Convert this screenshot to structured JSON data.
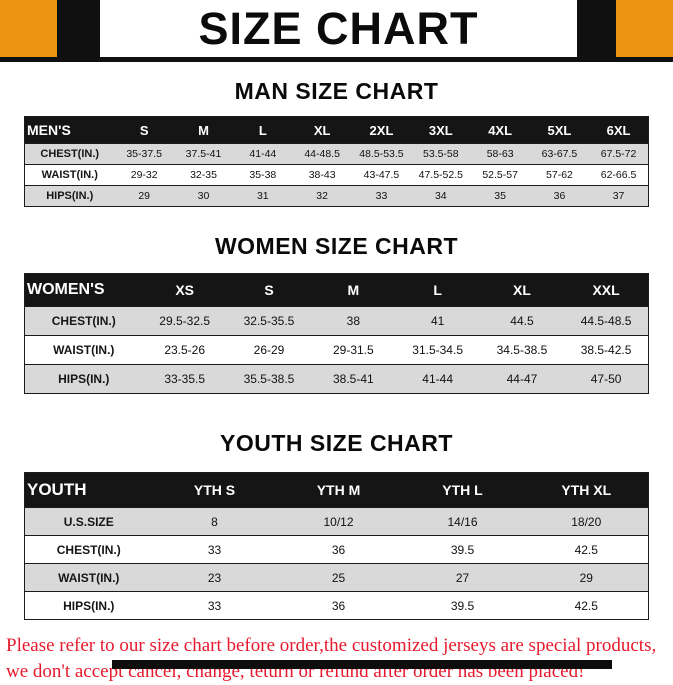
{
  "header": {
    "title": "SIZE CHART"
  },
  "colors": {
    "accent_orange": "#ED9312",
    "banner_black": "#101010",
    "table_header_black": "#151515",
    "row_shade_gray": "#d9d9d9",
    "footer_red": "#E8192C"
  },
  "sections": [
    {
      "id": "men",
      "heading": "MAN SIZE CHART",
      "table": {
        "header": [
          "MEN'S",
          "S",
          "M",
          "L",
          "XL",
          "2XL",
          "3XL",
          "4XL",
          "5XL",
          "6XL"
        ],
        "rows": [
          {
            "label": "CHEST(IN.)",
            "values": [
              "35-37.5",
              "37.5-41",
              "41-44",
              "44-48.5",
              "48.5-53.5",
              "53.5-58",
              "58-63",
              "63-67.5",
              "67.5-72"
            ]
          },
          {
            "label": "WAIST(IN.)",
            "values": [
              "29-32",
              "32-35",
              "35-38",
              "38-43",
              "43-47.5",
              "47.5-52.5",
              "52.5-57",
              "57-62",
              "62-66.5"
            ]
          },
          {
            "label": "HIPS(IN.)",
            "values": [
              "29",
              "30",
              "31",
              "32",
              "33",
              "34",
              "35",
              "36",
              "37"
            ]
          }
        ]
      }
    },
    {
      "id": "women",
      "heading": "WOMEN SIZE CHART",
      "table": {
        "header": [
          "WOMEN'S",
          "XS",
          "S",
          "M",
          "L",
          "XL",
          "XXL"
        ],
        "rows": [
          {
            "label": "CHEST(IN.)",
            "values": [
              "29.5-32.5",
              "32.5-35.5",
              "38",
              "41",
              "44.5",
              "44.5-48.5"
            ]
          },
          {
            "label": "WAIST(IN.)",
            "values": [
              "23.5-26",
              "26-29",
              "29-31.5",
              "31.5-34.5",
              "34.5-38.5",
              "38.5-42.5"
            ]
          },
          {
            "label": "HIPS(IN.)",
            "values": [
              "33-35.5",
              "35.5-38.5",
              "38.5-41",
              "41-44",
              "44-47",
              "47-50"
            ]
          }
        ]
      }
    },
    {
      "id": "youth",
      "heading": "YOUTH SIZE CHART",
      "table": {
        "header": [
          "YOUTH",
          "YTH S",
          "YTH M",
          "YTH L",
          "YTH XL"
        ],
        "rows": [
          {
            "label": "U.S.SIZE",
            "values": [
              "8",
              "10/12",
              "14/16",
              "18/20"
            ]
          },
          {
            "label": "CHEST(IN.)",
            "values": [
              "33",
              "36",
              "39.5",
              "42.5"
            ]
          },
          {
            "label": "WAIST(IN.)",
            "values": [
              "23",
              "25",
              "27",
              "29"
            ]
          },
          {
            "label": "HIPS(IN.)",
            "values": [
              "33",
              "36",
              "39.5",
              "42.5"
            ]
          }
        ]
      }
    }
  ],
  "footer": {
    "lines": [
      "Please refer to our size chart before order,the customized jerseys are special products,",
      "we don't accept cancel, change, teturn or refund after order has been placed!"
    ]
  }
}
